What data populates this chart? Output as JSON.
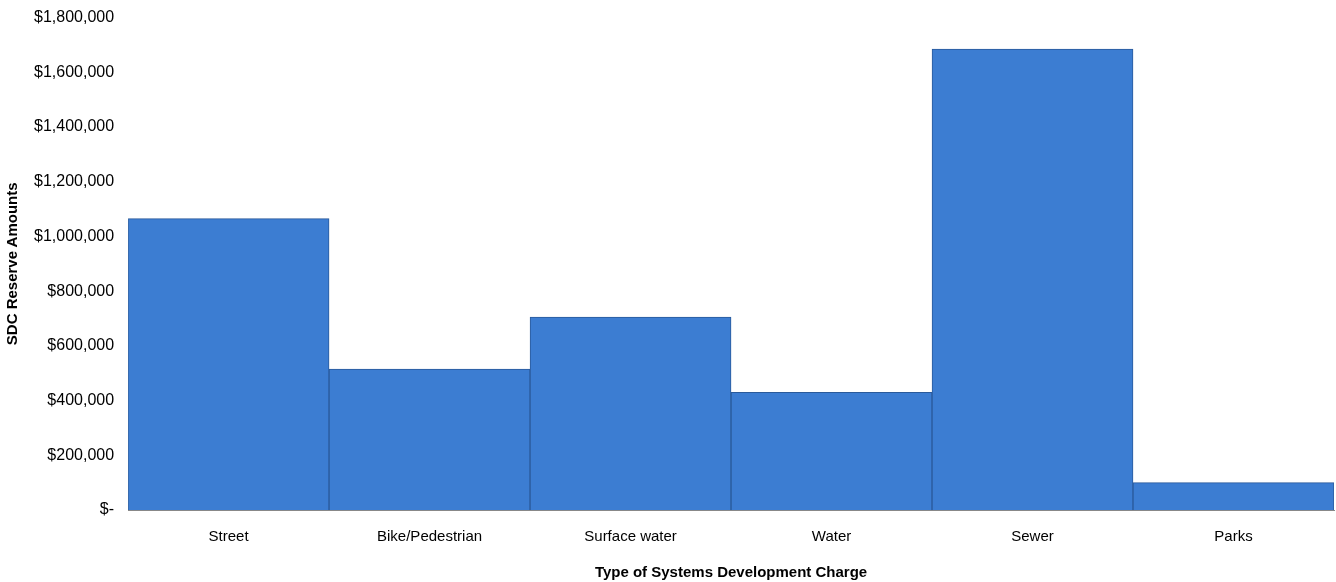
{
  "chart_data": {
    "type": "bar",
    "xlabel": "Type of Systems Development Charge",
    "ylabel": "SDC Reserve Amounts",
    "categories": [
      "Street",
      "Bike/Pedestrian",
      "Surface water",
      "Water",
      "Sewer",
      "Parks"
    ],
    "values": [
      1065000,
      515000,
      705000,
      430000,
      1685000,
      100000
    ],
    "color": "#3c7dd2",
    "ylim": [
      0,
      1800000
    ],
    "yticks": [
      {
        "value": 0,
        "label": "$-"
      },
      {
        "value": 200000,
        "label": "$200,000"
      },
      {
        "value": 400000,
        "label": "$400,000"
      },
      {
        "value": 600000,
        "label": "$600,000"
      },
      {
        "value": 800000,
        "label": "$800,000"
      },
      {
        "value": 1000000,
        "label": "$1,000,000"
      },
      {
        "value": 1200000,
        "label": "$1,200,000"
      },
      {
        "value": 1400000,
        "label": "$1,400,000"
      },
      {
        "value": 1600000,
        "label": "$1,600,000"
      },
      {
        "value": 1800000,
        "label": "$1,800,000"
      }
    ],
    "grid": false,
    "legend": false
  }
}
